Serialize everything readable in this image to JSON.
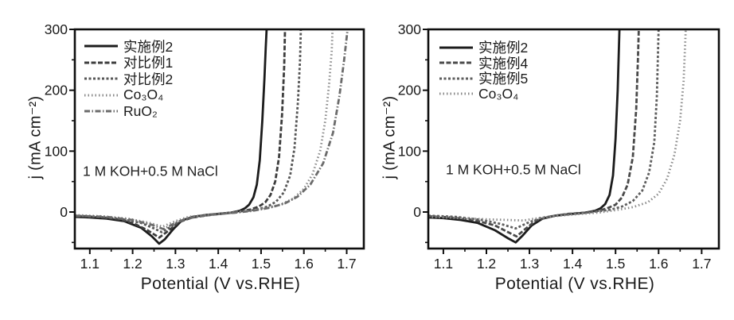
{
  "figure": {
    "background": "#ffffff",
    "text_color": "#1a1a1a"
  },
  "chart_data": [
    {
      "type": "line",
      "panel": "left",
      "title": "",
      "xlabel": "Potential (V vs.RHE)",
      "ylabel": "j (mA cm⁻²)",
      "annotation": "1 M KOH+0.5 M NaCl",
      "xlim": [
        1.065,
        1.74
      ],
      "ylim": [
        -60,
        300
      ],
      "xticks": [
        1.1,
        1.2,
        1.3,
        1.4,
        1.5,
        1.6,
        1.7
      ],
      "xticks_minor": [
        1.15,
        1.25,
        1.35,
        1.45,
        1.55,
        1.65
      ],
      "yticks": [
        0,
        100,
        200,
        300
      ],
      "yticks_minor": [
        -50,
        50,
        150,
        250
      ],
      "grid": false,
      "legend_position": "top-left",
      "axis_color": "#0f0f0f",
      "series": [
        {
          "name": "实施例2",
          "color": "#1c1c1c",
          "dash": "",
          "width": 2.8,
          "points": [
            [
              1.065,
              -8
            ],
            [
              1.1,
              -9
            ],
            [
              1.14,
              -11
            ],
            [
              1.18,
              -15
            ],
            [
              1.22,
              -26
            ],
            [
              1.245,
              -40
            ],
            [
              1.262,
              -52
            ],
            [
              1.275,
              -45
            ],
            [
              1.295,
              -28
            ],
            [
              1.315,
              -14
            ],
            [
              1.34,
              -8
            ],
            [
              1.37,
              -5
            ],
            [
              1.4,
              -3
            ],
            [
              1.43,
              -1
            ],
            [
              1.45,
              2
            ],
            [
              1.462,
              6
            ],
            [
              1.472,
              12
            ],
            [
              1.482,
              24
            ],
            [
              1.49,
              45
            ],
            [
              1.497,
              85
            ],
            [
              1.503,
              150
            ],
            [
              1.508,
              220
            ],
            [
              1.511,
              270
            ],
            [
              1.513,
              300
            ]
          ]
        },
        {
          "name": "对比例1",
          "color": "#3d3d3d",
          "dash": "6 2.5",
          "width": 2.8,
          "points": [
            [
              1.065,
              -7
            ],
            [
              1.11,
              -8
            ],
            [
              1.16,
              -11
            ],
            [
              1.2,
              -18
            ],
            [
              1.235,
              -30
            ],
            [
              1.262,
              -42
            ],
            [
              1.285,
              -30
            ],
            [
              1.31,
              -16
            ],
            [
              1.34,
              -9
            ],
            [
              1.38,
              -5
            ],
            [
              1.42,
              -2
            ],
            [
              1.45,
              1
            ],
            [
              1.475,
              4
            ],
            [
              1.495,
              9
            ],
            [
              1.51,
              16
            ],
            [
              1.522,
              28
            ],
            [
              1.533,
              50
            ],
            [
              1.542,
              90
            ],
            [
              1.549,
              160
            ],
            [
              1.554,
              240
            ],
            [
              1.556,
              300
            ]
          ]
        },
        {
          "name": "对比例2",
          "color": "#575757",
          "dash": "3 2.5",
          "width": 2.8,
          "points": [
            [
              1.065,
              -6
            ],
            [
              1.12,
              -8
            ],
            [
              1.17,
              -11
            ],
            [
              1.22,
              -18
            ],
            [
              1.25,
              -27
            ],
            [
              1.268,
              -33
            ],
            [
              1.29,
              -24
            ],
            [
              1.315,
              -13
            ],
            [
              1.35,
              -7
            ],
            [
              1.39,
              -4
            ],
            [
              1.43,
              -1
            ],
            [
              1.46,
              1
            ],
            [
              1.49,
              4
            ],
            [
              1.515,
              9
            ],
            [
              1.535,
              17
            ],
            [
              1.553,
              32
            ],
            [
              1.568,
              60
            ],
            [
              1.578,
              105
            ],
            [
              1.586,
              180
            ],
            [
              1.591,
              250
            ],
            [
              1.593,
              300
            ]
          ]
        },
        {
          "name": "Co₃O₄",
          "color": "#8a8a8a",
          "dash": "1.5 3",
          "width": 2.8,
          "points": [
            [
              1.065,
              -5
            ],
            [
              1.13,
              -7
            ],
            [
              1.19,
              -11
            ],
            [
              1.24,
              -18
            ],
            [
              1.27,
              -24
            ],
            [
              1.3,
              -15
            ],
            [
              1.33,
              -8
            ],
            [
              1.38,
              -4
            ],
            [
              1.43,
              -1
            ],
            [
              1.47,
              2
            ],
            [
              1.51,
              6
            ],
            [
              1.545,
              12
            ],
            [
              1.575,
              22
            ],
            [
              1.6,
              38
            ],
            [
              1.62,
              62
            ],
            [
              1.638,
              100
            ],
            [
              1.65,
              150
            ],
            [
              1.659,
              210
            ],
            [
              1.665,
              265
            ],
            [
              1.667,
              300
            ]
          ]
        },
        {
          "name": "RuO₂",
          "color": "#6b6b6b",
          "dash": "7 2.5 1.5 2.5",
          "width": 2.8,
          "points": [
            [
              1.065,
              -6
            ],
            [
              1.14,
              -8
            ],
            [
              1.2,
              -13
            ],
            [
              1.245,
              -21
            ],
            [
              1.272,
              -28
            ],
            [
              1.305,
              -16
            ],
            [
              1.345,
              -8
            ],
            [
              1.39,
              -4
            ],
            [
              1.44,
              -1
            ],
            [
              1.48,
              2
            ],
            [
              1.52,
              7
            ],
            [
              1.555,
              14
            ],
            [
              1.585,
              25
            ],
            [
              1.615,
              45
            ],
            [
              1.645,
              80
            ],
            [
              1.668,
              130
            ],
            [
              1.683,
              190
            ],
            [
              1.694,
              250
            ],
            [
              1.702,
              300
            ]
          ]
        }
      ]
    },
    {
      "type": "line",
      "panel": "right",
      "title": "",
      "xlabel": "Potential (V vs.RHE)",
      "ylabel": "j (mA cm⁻²)",
      "annotation": "1 M KOH+0.5 M NaCl",
      "xlim": [
        1.065,
        1.74
      ],
      "ylim": [
        -60,
        300
      ],
      "xticks": [
        1.1,
        1.2,
        1.3,
        1.4,
        1.5,
        1.6,
        1.7
      ],
      "xticks_minor": [
        1.15,
        1.25,
        1.35,
        1.45,
        1.55,
        1.65
      ],
      "yticks": [
        0,
        100,
        200,
        300
      ],
      "yticks_minor": [
        -50,
        50,
        150,
        250
      ],
      "grid": false,
      "legend_position": "top-left",
      "axis_color": "#0f0f0f",
      "series": [
        {
          "name": "实施例2",
          "color": "#1c1c1c",
          "dash": "",
          "width": 2.8,
          "points": [
            [
              1.065,
              -9
            ],
            [
              1.1,
              -10
            ],
            [
              1.14,
              -13
            ],
            [
              1.18,
              -18
            ],
            [
              1.22,
              -30
            ],
            [
              1.25,
              -43
            ],
            [
              1.268,
              -50
            ],
            [
              1.285,
              -38
            ],
            [
              1.305,
              -22
            ],
            [
              1.33,
              -11
            ],
            [
              1.36,
              -6
            ],
            [
              1.4,
              -3
            ],
            [
              1.43,
              -1
            ],
            [
              1.452,
              2
            ],
            [
              1.465,
              6
            ],
            [
              1.476,
              13
            ],
            [
              1.486,
              28
            ],
            [
              1.494,
              60
            ],
            [
              1.5,
              120
            ],
            [
              1.505,
              200
            ],
            [
              1.509,
              300
            ]
          ]
        },
        {
          "name": "实施例4",
          "color": "#4a4a4a",
          "dash": "6 2.5",
          "width": 2.8,
          "points": [
            [
              1.065,
              -7
            ],
            [
              1.12,
              -9
            ],
            [
              1.17,
              -13
            ],
            [
              1.22,
              -22
            ],
            [
              1.25,
              -33
            ],
            [
              1.27,
              -40
            ],
            [
              1.29,
              -28
            ],
            [
              1.315,
              -14
            ],
            [
              1.35,
              -7
            ],
            [
              1.39,
              -3
            ],
            [
              1.43,
              -1
            ],
            [
              1.46,
              2
            ],
            [
              1.48,
              6
            ],
            [
              1.5,
              12
            ],
            [
              1.515,
              24
            ],
            [
              1.528,
              45
            ],
            [
              1.54,
              90
            ],
            [
              1.548,
              170
            ],
            [
              1.552,
              250
            ],
            [
              1.554,
              300
            ]
          ]
        },
        {
          "name": "实施例5",
          "color": "#5e5e5e",
          "dash": "3 2.5",
          "width": 2.8,
          "points": [
            [
              1.065,
              -6
            ],
            [
              1.13,
              -8
            ],
            [
              1.19,
              -13
            ],
            [
              1.235,
              -20
            ],
            [
              1.268,
              -27
            ],
            [
              1.295,
              -18
            ],
            [
              1.325,
              -10
            ],
            [
              1.37,
              -5
            ],
            [
              1.42,
              -2
            ],
            [
              1.46,
              1
            ],
            [
              1.49,
              4
            ],
            [
              1.515,
              9
            ],
            [
              1.54,
              18
            ],
            [
              1.562,
              35
            ],
            [
              1.578,
              65
            ],
            [
              1.59,
              115
            ],
            [
              1.596,
              190
            ],
            [
              1.6,
              300
            ]
          ]
        },
        {
          "name": "Co₃O₄",
          "color": "#8a8a8a",
          "dash": "1.5 3",
          "width": 2.8,
          "points": [
            [
              1.065,
              -8
            ],
            [
              1.14,
              -10
            ],
            [
              1.2,
              -12
            ],
            [
              1.25,
              -13
            ],
            [
              1.285,
              -14
            ],
            [
              1.32,
              -10
            ],
            [
              1.37,
              -6
            ],
            [
              1.42,
              -3
            ],
            [
              1.46,
              -1
            ],
            [
              1.5,
              3
            ],
            [
              1.54,
              8
            ],
            [
              1.575,
              16
            ],
            [
              1.6,
              30
            ],
            [
              1.62,
              55
            ],
            [
              1.637,
              95
            ],
            [
              1.65,
              150
            ],
            [
              1.658,
              215
            ],
            [
              1.661,
              265
            ],
            [
              1.663,
              300
            ]
          ]
        }
      ]
    }
  ]
}
